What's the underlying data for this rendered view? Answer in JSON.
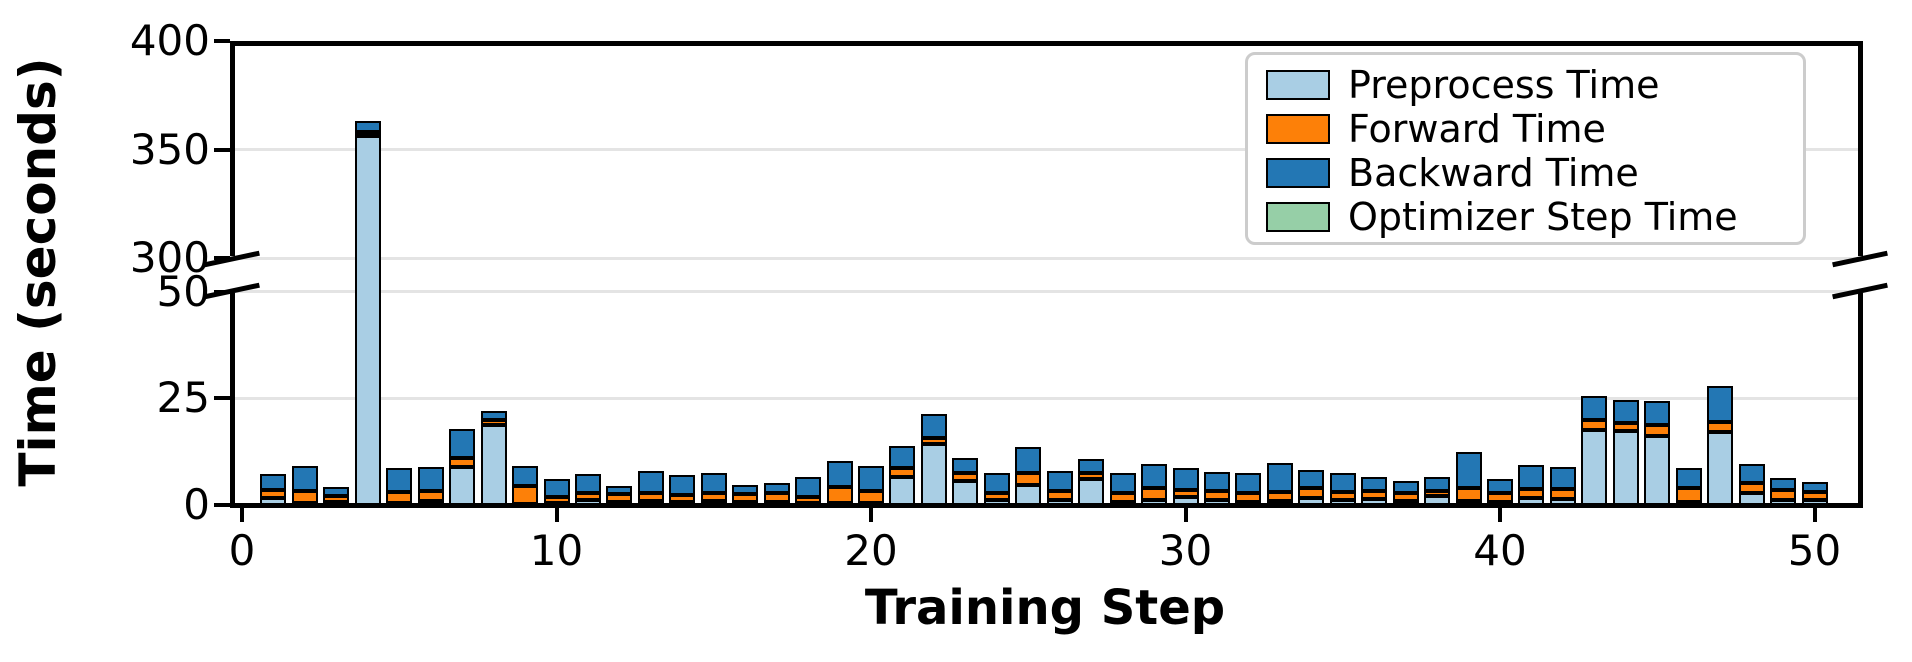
{
  "chart_data": {
    "type": "bar",
    "stacked": true,
    "title": "",
    "xlabel": "Training Step",
    "ylabel": "Time (seconds)",
    "grid": "horizontal",
    "legend_position": "upper right",
    "bar_edge_color": "#000000",
    "x_ticks": [
      0,
      10,
      20,
      30,
      40,
      50
    ],
    "broken_y_axis": {
      "lower": {
        "range": [
          0,
          50
        ],
        "ticks": [
          0,
          25,
          50
        ]
      },
      "upper": {
        "range": [
          300,
          400
        ],
        "ticks": [
          300,
          350,
          400
        ]
      }
    },
    "categories": [
      1,
      2,
      3,
      4,
      5,
      6,
      7,
      8,
      9,
      10,
      11,
      12,
      13,
      14,
      15,
      16,
      17,
      18,
      19,
      20,
      21,
      22,
      23,
      24,
      25,
      26,
      27,
      28,
      29,
      30,
      31,
      32,
      33,
      34,
      35,
      36,
      37,
      38,
      39,
      40,
      41,
      42,
      43,
      44,
      45,
      46,
      47,
      48,
      49,
      50
    ],
    "series": [
      {
        "name": "Preprocess Time",
        "color": "#a9cee4",
        "values": [
          1.7,
          0.4,
          0.6,
          356.0,
          0.5,
          1.0,
          9.0,
          18.7,
          0.2,
          0.5,
          1.2,
          0.8,
          1.0,
          0.8,
          1.0,
          0.6,
          0.8,
          0.4,
          0.5,
          0.4,
          6.5,
          14.2,
          5.6,
          1.2,
          4.8,
          1.2,
          6.0,
          0.8,
          1.2,
          1.9,
          1.2,
          0.8,
          1.0,
          1.6,
          1.2,
          1.3,
          1.0,
          2.1,
          1.0,
          0.8,
          1.6,
          1.3,
          17.5,
          17.3,
          16.1,
          0.8,
          17.1,
          2.9,
          1.2,
          1.2
        ]
      },
      {
        "name": "Forward Time",
        "color": "#fd8008",
        "values": [
          1.8,
          2.9,
          1.6,
          2.2,
          2.5,
          2.3,
          2.1,
          1.3,
          4.2,
          1.4,
          1.7,
          1.7,
          1.9,
          1.5,
          1.7,
          1.9,
          1.9,
          1.4,
          3.8,
          2.9,
          2.1,
          1.5,
          1.8,
          1.7,
          2.8,
          2.1,
          1.4,
          2.1,
          2.7,
          1.6,
          2.1,
          1.9,
          2.0,
          2.3,
          1.9,
          2.0,
          1.9,
          1.2,
          2.9,
          1.9,
          2.1,
          2.4,
          2.4,
          1.8,
          2.6,
          3.1,
          2.4,
          2.3,
          2.3,
          1.9
        ]
      },
      {
        "name": "Backward Time",
        "color": "#2377b4",
        "values": [
          3.7,
          5.8,
          1.9,
          4.8,
          5.6,
          5.7,
          6.8,
          2.0,
          4.7,
          4.1,
          4.3,
          1.9,
          5.1,
          4.7,
          4.9,
          2.3,
          2.5,
          4.8,
          6.0,
          5.9,
          5.3,
          5.5,
          3.7,
          4.5,
          5.9,
          4.6,
          3.3,
          4.5,
          5.8,
          5.1,
          4.5,
          4.7,
          6.9,
          4.3,
          4.3,
          3.3,
          2.7,
          3.2,
          8.4,
          3.5,
          5.6,
          5.3,
          5.6,
          5.6,
          5.7,
          4.7,
          8.3,
          4.4,
          2.9,
          2.2
        ]
      },
      {
        "name": "Optimizer Step Time",
        "color": "#96cfa7",
        "values": [
          0,
          0,
          0,
          0,
          0,
          0,
          0,
          0,
          0,
          0,
          0,
          0,
          0,
          0,
          0,
          0,
          0,
          0,
          0,
          0,
          0,
          0,
          0,
          0,
          0,
          0,
          0,
          0,
          0,
          0,
          0,
          0,
          0,
          0,
          0,
          0,
          0,
          0,
          0,
          0,
          0,
          0,
          0,
          0,
          0,
          0,
          0,
          0,
          0,
          0
        ]
      }
    ]
  }
}
